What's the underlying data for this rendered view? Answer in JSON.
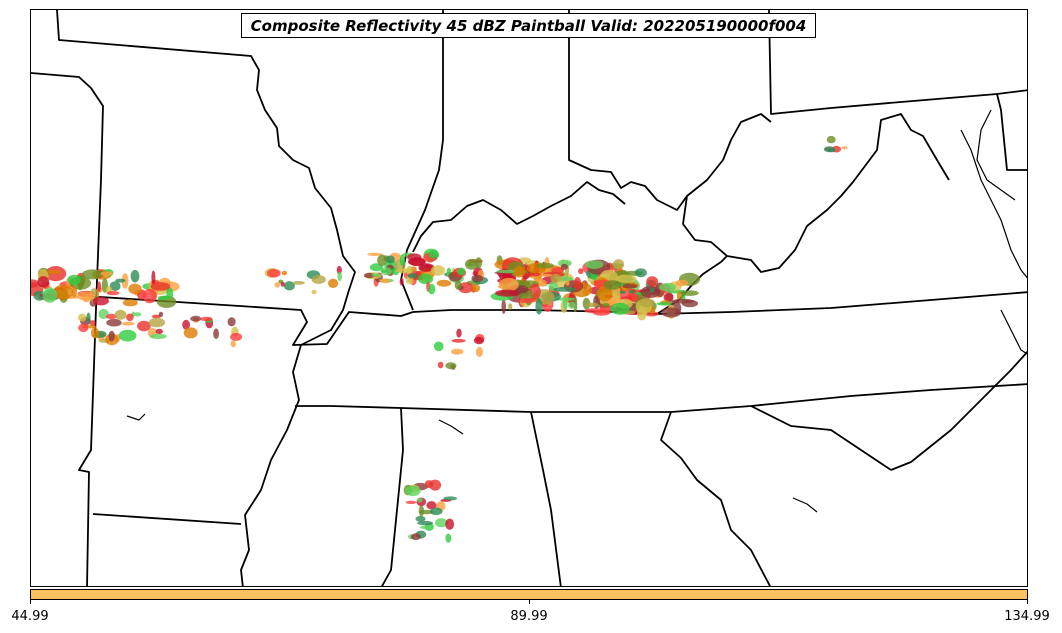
{
  "title": "Composite Reflectivity 45 dBZ Paintball Valid: 202205190000f004",
  "colorbar": {
    "color": "#ffc060",
    "ticks": [
      "44.99",
      "89.99",
      "134.99"
    ]
  },
  "member_colors": [
    "#ff3b3b",
    "#e8302a",
    "#2ecc40",
    "#5fd35f",
    "#e07b00",
    "#ffa040",
    "#8b3a3a",
    "#6b8e23",
    "#b5a642",
    "#d4c04a",
    "#2e8b57",
    "#c8102e"
  ],
  "icons": [
    "state-boundary-lines",
    "coastline"
  ]
}
